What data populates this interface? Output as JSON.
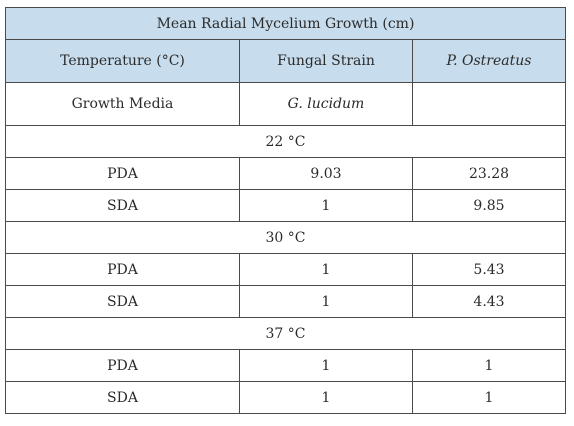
{
  "table": {
    "caption": "Mean Radial Mycelium Growth (cm)",
    "headers": [
      "Temperature (°C)",
      "Fungal Strain",
      "P. Ostreatus"
    ],
    "subheader": [
      "Growth Media",
      "G. lucidum",
      ""
    ],
    "groups": [
      {
        "temperature": "22 °C",
        "rows": [
          {
            "media": "PDA",
            "g_lucidum": "9.03",
            "p_ostreatus": "23.28"
          },
          {
            "media": "SDA",
            "g_lucidum": "1",
            "p_ostreatus": "9.85"
          }
        ]
      },
      {
        "temperature": "30 °C",
        "rows": [
          {
            "media": "PDA",
            "g_lucidum": "1",
            "p_ostreatus": "5.43"
          },
          {
            "media": "SDA",
            "g_lucidum": "1",
            "p_ostreatus": "4.43"
          }
        ]
      },
      {
        "temperature": "37 °C",
        "rows": [
          {
            "media": "PDA",
            "g_lucidum": "1",
            "p_ostreatus": "1"
          },
          {
            "media": "SDA",
            "g_lucidum": "1",
            "p_ostreatus": "1"
          }
        ]
      }
    ]
  }
}
